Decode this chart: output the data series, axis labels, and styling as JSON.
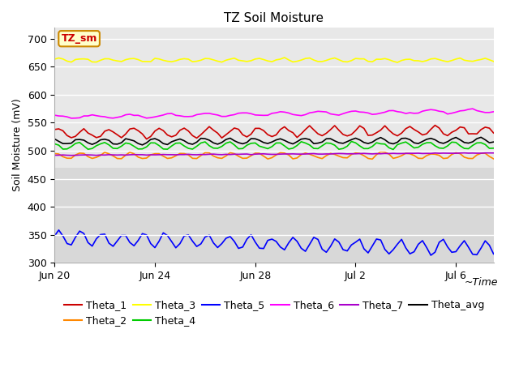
{
  "title": "TZ Soil Moisture",
  "xlabel": "Time",
  "ylabel": "Soil Moisture (mV)",
  "ylim": [
    300,
    720
  ],
  "xlim_days": [
    0,
    17.5
  ],
  "x_ticks_labels": [
    "Jun 20",
    "Jun 24",
    "Jun 28",
    "Jul 2",
    "Jul 6"
  ],
  "x_ticks_days": [
    0,
    4,
    8,
    12,
    16
  ],
  "yticks": [
    300,
    350,
    400,
    450,
    500,
    550,
    600,
    650,
    700
  ],
  "bg_color": "#d8d8d8",
  "fig_bg": "#ffffff",
  "series": [
    {
      "name": "Theta_1",
      "color": "#cc0000",
      "base": 530,
      "trend": 0.35,
      "amplitude": 8,
      "period": 1.0,
      "phase": 0.5,
      "noise_amp": 1.5,
      "seed": 101
    },
    {
      "name": "Theta_2",
      "color": "#ff8800",
      "base": 491,
      "trend": 0.02,
      "amplitude": 5,
      "period": 1.0,
      "phase": 1.2,
      "noise_amp": 1.0,
      "seed": 202
    },
    {
      "name": "Theta_3",
      "color": "#ffff00",
      "base": 662,
      "trend": -0.02,
      "amplitude": 3,
      "period": 1.0,
      "phase": 0.8,
      "noise_amp": 0.8,
      "seed": 303
    },
    {
      "name": "Theta_4",
      "color": "#00cc00",
      "base": 508,
      "trend": 0.1,
      "amplitude": 6,
      "period": 1.0,
      "phase": 2.0,
      "noise_amp": 1.0,
      "seed": 404
    },
    {
      "name": "Theta_5",
      "color": "#0000ff",
      "base": 345,
      "trend": -1.2,
      "amplitude": 12,
      "period": 0.85,
      "phase": 0.3,
      "noise_amp": 2.0,
      "seed": 505
    },
    {
      "name": "Theta_6",
      "color": "#ff00ff",
      "base": 560,
      "trend": 0.65,
      "amplitude": 3,
      "period": 1.5,
      "phase": 1.5,
      "noise_amp": 0.6,
      "seed": 606
    },
    {
      "name": "Theta_7",
      "color": "#aa00cc",
      "base": 492,
      "trend": 0.22,
      "amplitude": 0.3,
      "period": 1.0,
      "phase": 0.0,
      "noise_amp": 0.2,
      "seed": 707
    },
    {
      "name": "Theta_avg",
      "color": "#000000",
      "base": 516,
      "trend": 0.12,
      "amplitude": 5,
      "period": 1.0,
      "phase": 1.8,
      "noise_amp": 0.8,
      "seed": 808
    }
  ],
  "legend_label": "TZ_sm",
  "legend_box_facecolor": "#ffffcc",
  "legend_box_edgecolor": "#cc8800",
  "title_fontsize": 11,
  "axis_label_fontsize": 9,
  "tick_fontsize": 9,
  "legend_fontsize": 9
}
